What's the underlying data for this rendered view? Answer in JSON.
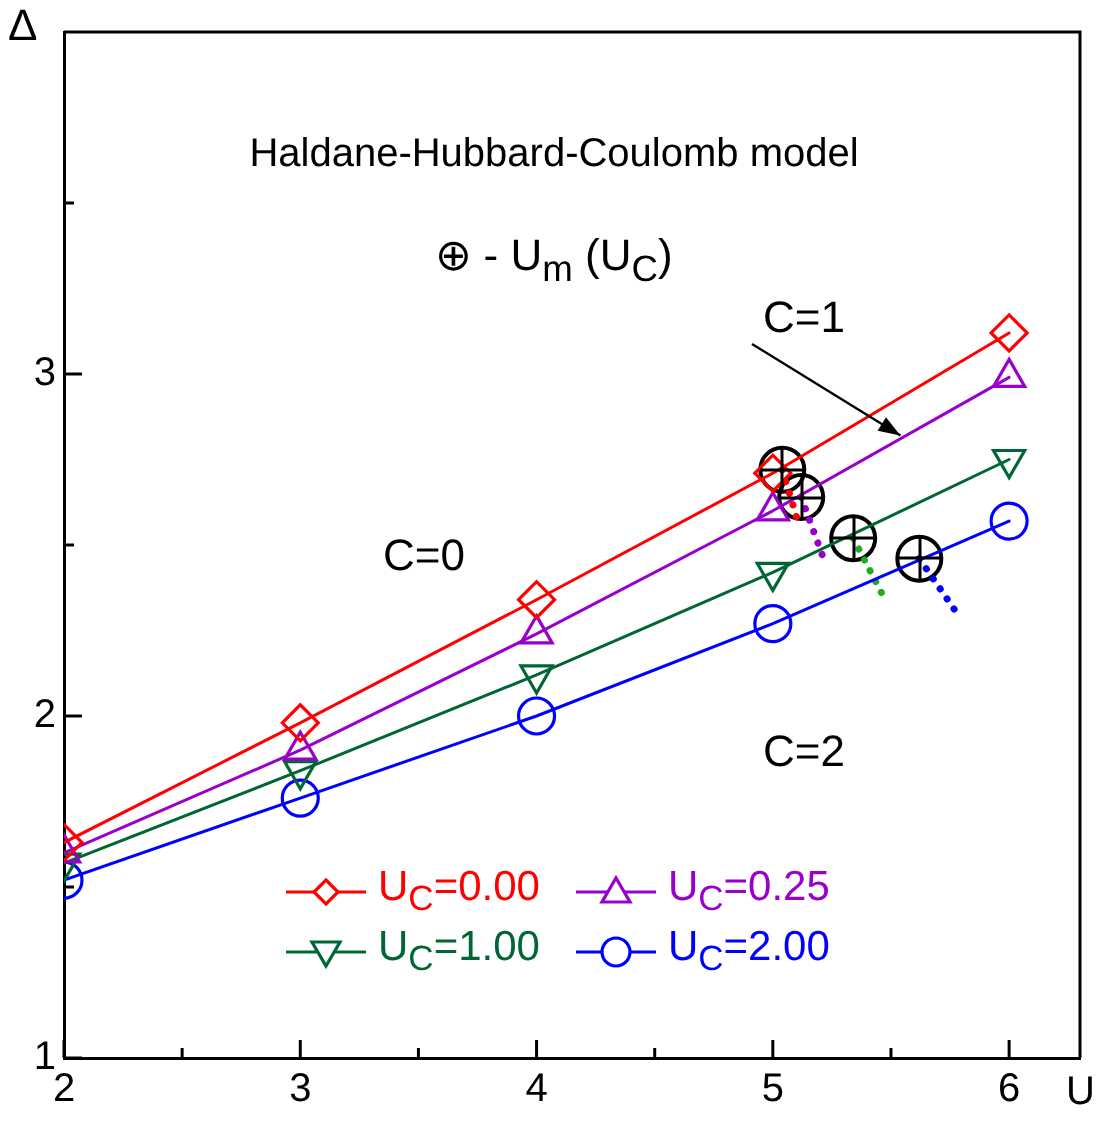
{
  "chart_data": {
    "type": "line",
    "xlabel": "U",
    "ylabel": "Δ",
    "annotations": [
      "Haldane-Hubbard-Coulomb model",
      "⊕ - U$_{m}$ (U$_{C}$)",
      "C=0",
      {
        "text": "C=1",
        "x": 5.54,
        "y": 2.82
      },
      "C=2"
    ],
    "x": [
      2,
      3,
      4,
      5,
      6
    ],
    "xlim": [
      2,
      6.3
    ],
    "xticks": [
      2,
      {
        "value": 2.5,
        "label": null
      },
      3,
      {
        "value": 3.5,
        "label": null
      },
      4,
      {
        "value": 4.5,
        "label": null
      },
      5,
      {
        "value": 5.5,
        "label": null
      },
      6
    ],
    "ylim": [
      1,
      4
    ],
    "yticks": [
      1,
      {
        "value": 1.5,
        "label": null
      },
      2,
      {
        "value": 2.5,
        "label": null
      },
      3,
      {
        "value": 3.5,
        "label": null
      }
    ],
    "grid": false,
    "legend": "bottom",
    "line_style": "solid",
    "series": [
      {
        "name": "U$_{C}$=0.00",
        "color": "#ff0000",
        "marker": "diamond",
        "values": [
          1.63,
          1.98,
          2.34,
          2.71,
          3.12
        ]
      },
      {
        "name": "U$_{C}$=0.25",
        "color": "#9900cc",
        "marker": "triangle",
        "values": [
          1.6,
          1.9,
          2.24,
          2.6,
          2.99
        ]
      },
      {
        "name": "U$_{C}$=1.00",
        "color": "#006633",
        "marker": "triangle-down",
        "values": [
          1.57,
          1.84,
          2.12,
          2.42,
          2.75
        ]
      },
      {
        "name": "U$_{C}$=2.00",
        "color": "#0000ff",
        "marker": "circle",
        "values": [
          1.52,
          1.76,
          2.0,
          2.27,
          2.57
        ]
      },
      {
        "type": "line",
        "color": "#ff0000",
        "line_style": "dotted",
        "marker": "none",
        "x": [
          5.04,
          5.11
        ],
        "values": [
          2.72,
          2.56
        ]
      },
      {
        "type": "line",
        "color": "#9900cc",
        "line_style": "dotted",
        "marker": "none",
        "x": [
          5.12,
          5.22
        ],
        "values": [
          2.64,
          2.45
        ]
      },
      {
        "type": "line",
        "color": "#22aa22",
        "line_style": "dotted",
        "marker": "none",
        "x": [
          5.34,
          5.46
        ],
        "values": [
          2.52,
          2.36
        ]
      },
      {
        "type": "line",
        "color": "#0000ff",
        "line_style": "dotted",
        "marker": "none",
        "x": [
          5.62,
          5.77
        ],
        "values": [
          2.46,
          2.31
        ]
      },
      {
        "type": "scatter",
        "color": "#000000",
        "marker": "circle",
        "x": [
          5.04,
          5.12,
          5.34,
          5.62
        ],
        "values": [
          2.72,
          2.64,
          2.52,
          2.46
        ]
      }
    ]
  }
}
